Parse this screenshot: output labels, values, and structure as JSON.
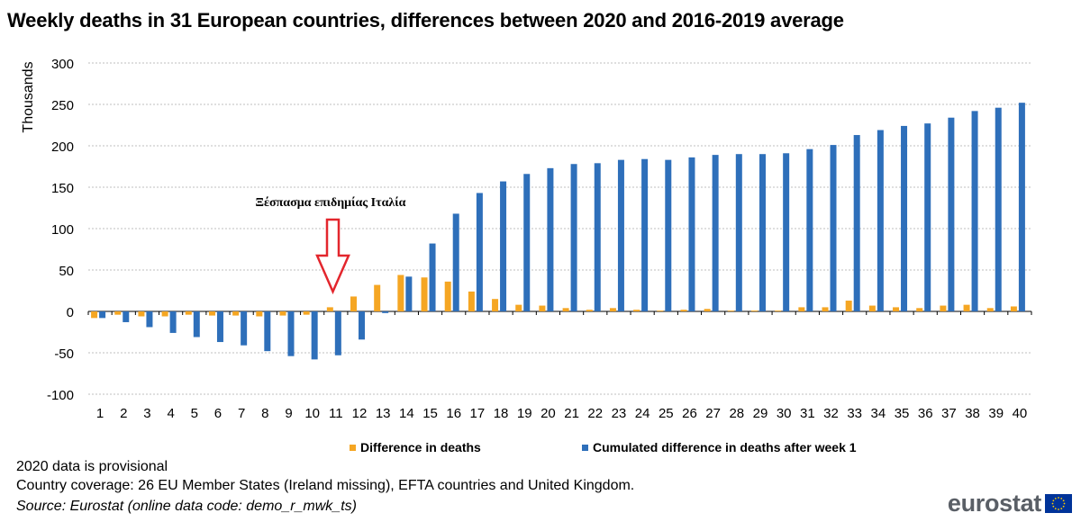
{
  "title": "Weekly deaths in 31 European countries, differences between 2020 and 2016-2019 average",
  "chart_data": {
    "type": "bar",
    "title": "Weekly deaths in 31 European countries, differences between 2020 and 2016-2019 average",
    "xlabel": "",
    "ylabel": "Thousands",
    "ylim": [
      -100,
      300
    ],
    "yticks": [
      -100,
      -50,
      0,
      50,
      100,
      150,
      200,
      250,
      300
    ],
    "grid": "horizontal dotted",
    "legend_position": "bottom",
    "categories": [
      "1",
      "2",
      "3",
      "4",
      "5",
      "6",
      "7",
      "8",
      "9",
      "10",
      "11",
      "12",
      "13",
      "14",
      "15",
      "16",
      "17",
      "18",
      "19",
      "20",
      "21",
      "22",
      "23",
      "24",
      "25",
      "26",
      "27",
      "28",
      "29",
      "30",
      "31",
      "32",
      "33",
      "34",
      "35",
      "36",
      "37",
      "38",
      "39",
      "40"
    ],
    "series": [
      {
        "name": "Difference in deaths",
        "color": "#f5a623",
        "values": [
          -8,
          -4,
          -6,
          -6,
          -4,
          -5,
          -5,
          -6,
          -5,
          -4,
          5,
          18,
          32,
          44,
          41,
          36,
          24,
          15,
          8,
          7,
          4,
          2,
          4,
          2,
          1,
          2,
          3,
          1,
          1,
          1,
          5,
          5,
          13,
          7,
          5,
          4,
          7,
          8,
          4,
          6
        ]
      },
      {
        "name": "Cumulated difference in deaths after week 1",
        "color": "#2e6fba",
        "values": [
          -8,
          -13,
          -19,
          -26,
          -31,
          -37,
          -41,
          -48,
          -54,
          -58,
          -53,
          -34,
          -2,
          42,
          82,
          118,
          143,
          157,
          166,
          173,
          178,
          179,
          183,
          184,
          183,
          186,
          189,
          190,
          190,
          191,
          196,
          201,
          213,
          219,
          224,
          227,
          234,
          242,
          246,
          252
        ]
      }
    ],
    "annotation": {
      "text": "Ξέσπασμα επιδημίας Ιταλία",
      "at_category": "11",
      "arrow_color": "#e3262d"
    }
  },
  "notes": {
    "provisional": "2020 data is provisional",
    "coverage": "Country coverage: 26 EU Member States (Ireland missing), EFTA countries and United Kingdom.",
    "source": "Source: Eurostat (online data code: demo_r_mwk_ts)"
  },
  "logo": {
    "text": "eurostat",
    "flag": "eu-flag"
  }
}
